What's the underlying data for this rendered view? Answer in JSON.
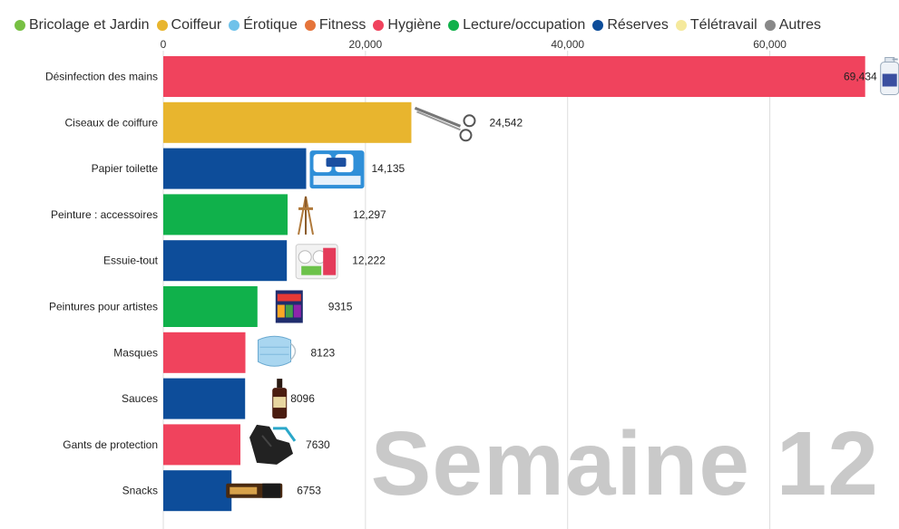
{
  "legend": [
    {
      "label": "Bricolage et Jardin",
      "color": "#77c043"
    },
    {
      "label": "Coiffeur",
      "color": "#e8b52e"
    },
    {
      "label": "Érotique",
      "color": "#6fc2ea"
    },
    {
      "label": "Fitness",
      "color": "#e5743a"
    },
    {
      "label": "Hygiène",
      "color": "#f0435d"
    },
    {
      "label": "Lecture/occupation",
      "color": "#10b14b"
    },
    {
      "label": "Réserves",
      "color": "#0d4d9a"
    },
    {
      "label": "Télétravail",
      "color": "#f5e99c"
    },
    {
      "label": "Autres",
      "color": "#888888"
    }
  ],
  "watermark": "Semaine 12",
  "chart_data": {
    "type": "bar",
    "orientation": "horizontal",
    "title": "",
    "xlabel": "",
    "ylabel": "",
    "xlim": [
      0,
      70000
    ],
    "x_ticks": [
      0,
      20000,
      40000,
      60000
    ],
    "x_tick_labels": [
      "0",
      "20,000",
      "40,000",
      "60,000"
    ],
    "grid": true,
    "legend_position": "top",
    "categories": [
      "Désinfection des mains",
      "Ciseaux de coiffure",
      "Papier toilette",
      "Peinture : accessoires",
      "Essuie-tout",
      "Peintures pour artistes",
      "Masques",
      "Sauces",
      "Gants de protection",
      "Snacks"
    ],
    "values": [
      69434,
      24542,
      14135,
      12297,
      12222,
      9315,
      8123,
      8096,
      7630,
      6753
    ],
    "value_labels": [
      "69,434",
      "24,542",
      "14,135",
      "12,297",
      "12,222",
      "9315",
      "8123",
      "8096",
      "7630",
      "6753"
    ],
    "groups": [
      "Hygiène",
      "Coiffeur",
      "Réserves",
      "Lecture/occupation",
      "Réserves",
      "Lecture/occupation",
      "Hygiène",
      "Réserves",
      "Hygiène",
      "Réserves"
    ],
    "group_colors": {
      "Hygiène": "#f0435d",
      "Coiffeur": "#e8b52e",
      "Réserves": "#0d4d9a",
      "Lecture/occupation": "#10b14b"
    },
    "icons": [
      "sanitizer-bottle-icon",
      "scissors-icon",
      "toilet-paper-icon",
      "easel-icon",
      "paper-towel-icon",
      "paint-set-icon",
      "face-mask-icon",
      "sauce-bottle-icon",
      "gloves-icon",
      "snack-bar-icon"
    ]
  }
}
